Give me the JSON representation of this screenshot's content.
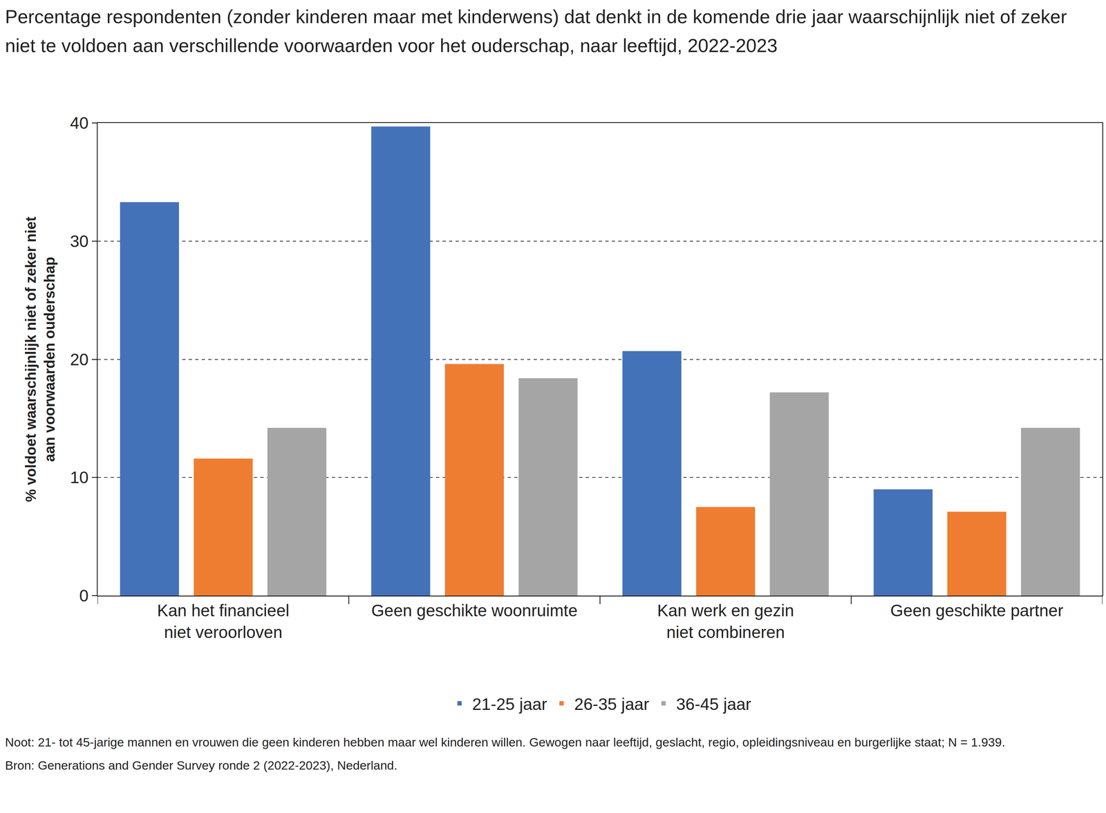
{
  "chart_data": {
    "type": "bar",
    "title": "Percentage respondenten (zonder kinderen maar met kinderwens) dat denkt in de komende drie jaar waarschijnlijk niet of zeker niet te voldoen aan verschillende voorwaarden voor het ouderschap, naar leeftijd, 2022-2023",
    "y_label": "% voldoet waarschijnlijk niet of zeker niet\naan voorwaarden ouderschap",
    "categories": [
      "Kan het financieel\nniet veroorloven",
      "Geen geschikte woonruimte",
      "Kan werk en gezin\nniet combineren",
      "Geen geschikte partner"
    ],
    "series": [
      {
        "name": "21-25 jaar",
        "color": "#4472b8",
        "values": [
          33.3,
          39.7,
          20.7,
          9.0
        ]
      },
      {
        "name": "26-35 jaar",
        "color": "#ee7d31",
        "values": [
          11.6,
          19.6,
          7.5,
          7.1
        ]
      },
      {
        "name": "36-45 jaar",
        "color": "#a5a5a5",
        "values": [
          14.2,
          18.4,
          17.2,
          14.2
        ]
      }
    ],
    "ylim": [
      0,
      40
    ],
    "yticks": [
      0,
      10,
      20,
      30,
      40
    ],
    "grid": true,
    "legend": "bottom",
    "annotations": [
      "Noot: 21- tot 45-jarige mannen en vrouwen die geen kinderen hebben maar wel kinderen willen. Gewogen naar leeftijd, geslacht, regio, opleidingsniveau en burgerlijke staat; N = 1.939.",
      "Bron: Generations and Gender Survey ronde 2 (2022-2023), Nederland."
    ]
  }
}
